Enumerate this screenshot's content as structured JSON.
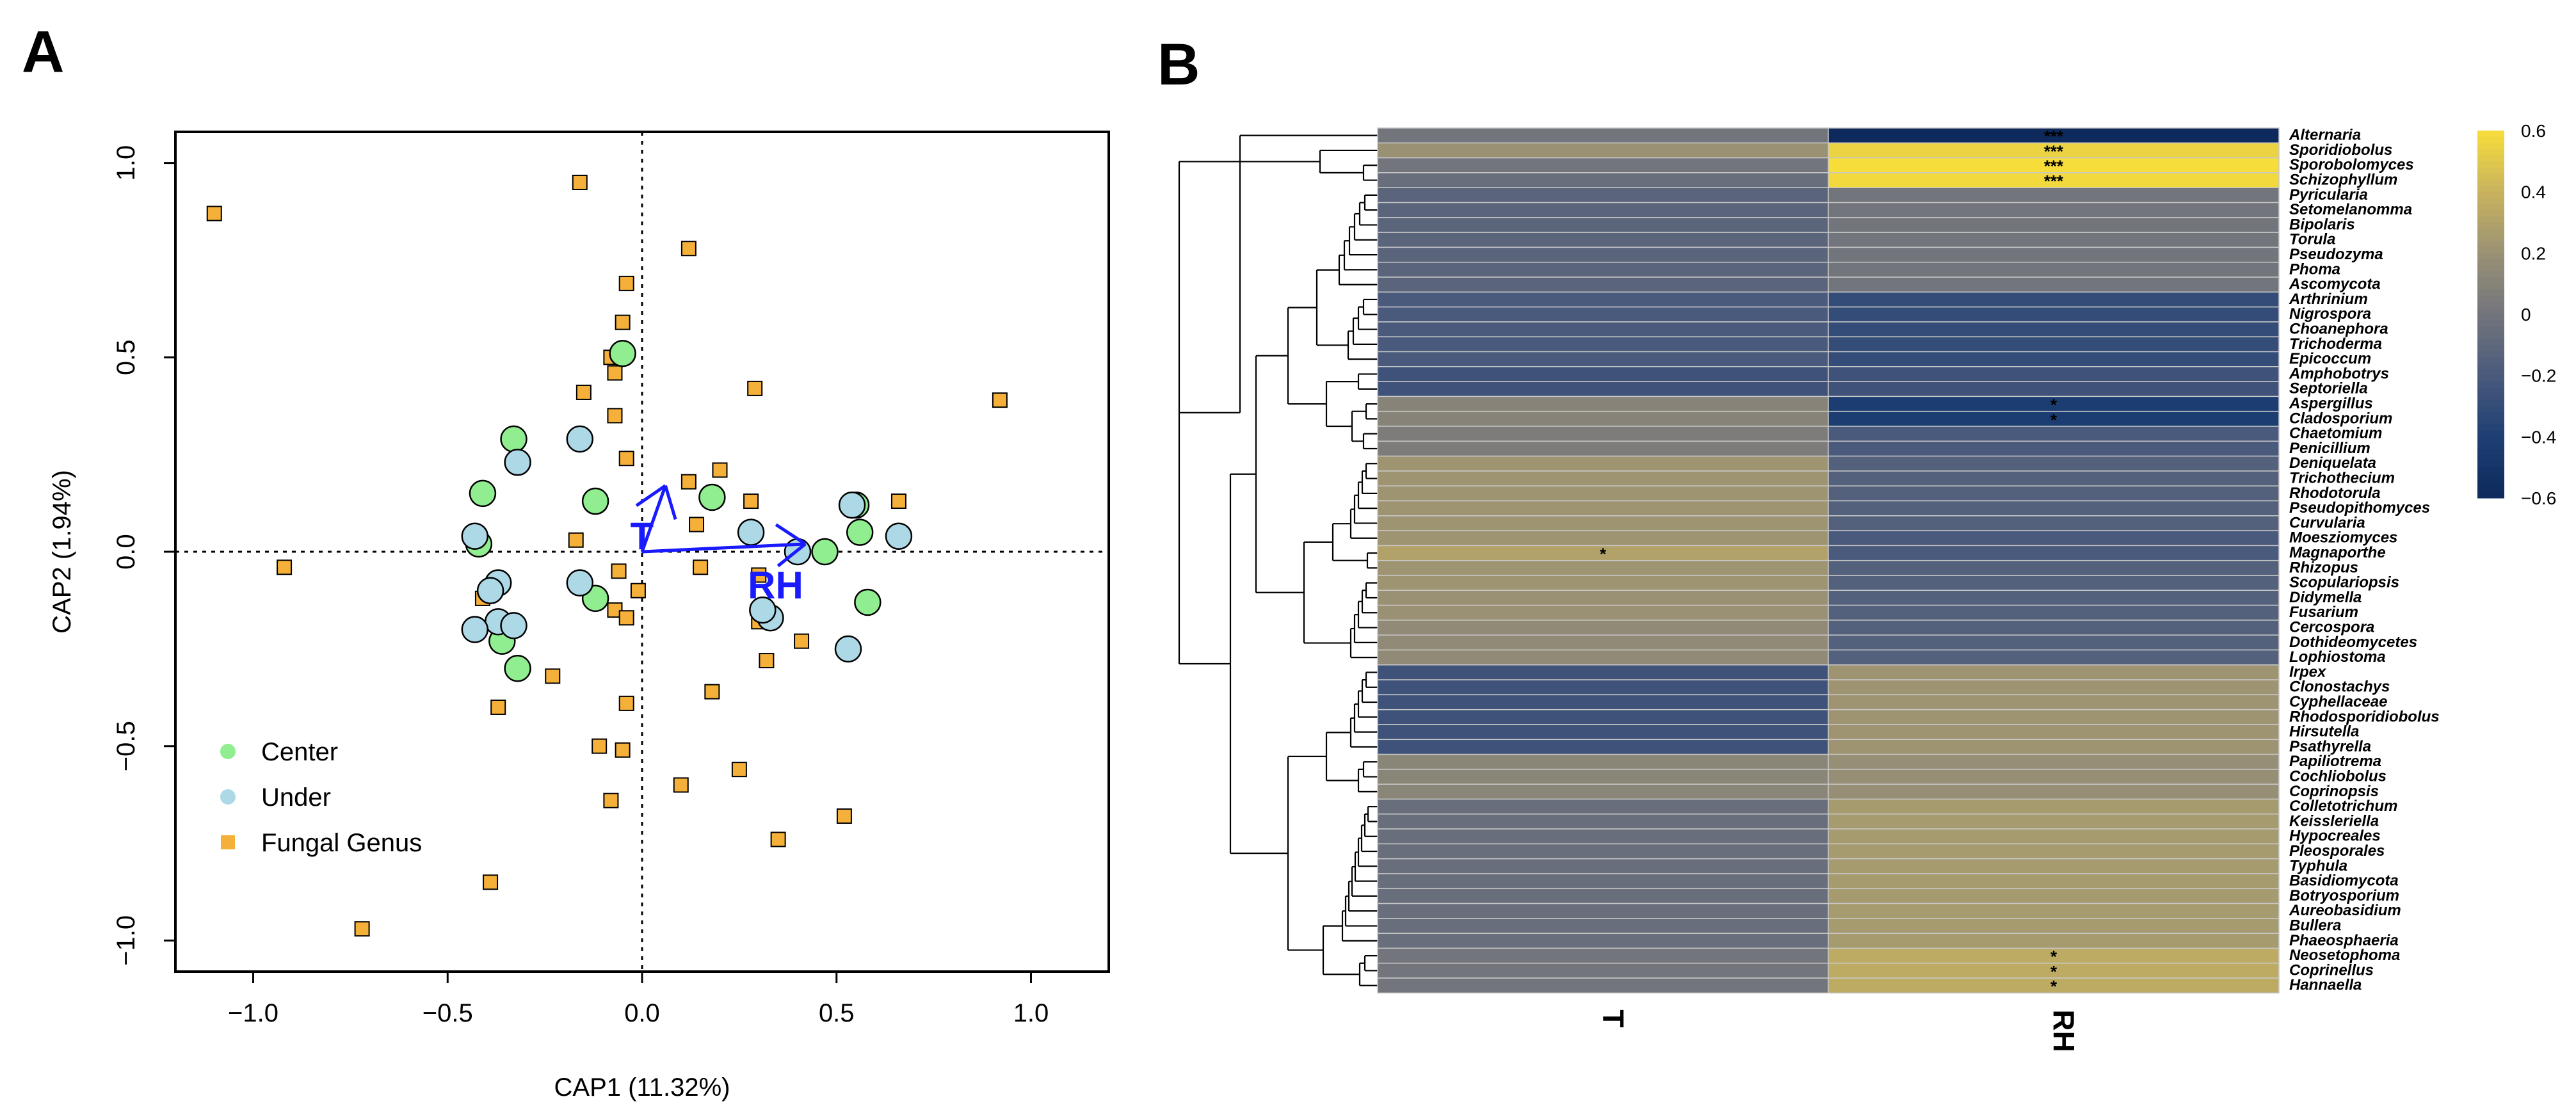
{
  "panel_a": {
    "label": "A",
    "legend": {
      "center": {
        "label": "Center",
        "color": "#90ee90"
      },
      "under": {
        "label": "Under",
        "color": "#add8e6"
      },
      "genus": {
        "label": "Fungal Genus",
        "color": "#f5b03a"
      }
    }
  },
  "panel_b": {
    "label": "B"
  },
  "chart_data": [
    {
      "type": "scatter",
      "title": "",
      "xlabel": "CAP1 (11.32%)",
      "ylabel": "CAP2 (1.94%)",
      "xlim": [
        -1.2,
        1.2
      ],
      "ylim": [
        -1.08,
        1.08
      ],
      "xticks": [
        "−1.0",
        "−0.5",
        "0.0",
        "0.5",
        "1.0"
      ],
      "xtick_values": [
        -1.0,
        -0.5,
        0.0,
        0.5,
        1.0
      ],
      "yticks": [
        "−1.0",
        "−0.5",
        "0.0",
        "0.5",
        "1.0"
      ],
      "ytick_values": [
        -1.0,
        -0.5,
        0.0,
        0.5,
        1.0
      ],
      "legend_position": "bottom-left",
      "series": [
        {
          "name": "Center",
          "points": [
            [
              -0.05,
              0.51
            ],
            [
              -0.33,
              0.29
            ],
            [
              -0.41,
              0.15
            ],
            [
              -0.12,
              0.13
            ],
            [
              0.18,
              0.14
            ],
            [
              -0.42,
              0.02
            ],
            [
              0.55,
              0.12
            ],
            [
              0.56,
              0.05
            ],
            [
              0.47,
              0.0
            ],
            [
              0.58,
              -0.13
            ],
            [
              -0.12,
              -0.12
            ],
            [
              -0.36,
              -0.23
            ],
            [
              -0.32,
              -0.3
            ]
          ]
        },
        {
          "name": "Under",
          "points": [
            [
              -0.16,
              0.29
            ],
            [
              -0.32,
              0.23
            ],
            [
              -0.43,
              0.04
            ],
            [
              0.28,
              0.05
            ],
            [
              0.54,
              0.12
            ],
            [
              0.66,
              0.04
            ],
            [
              0.4,
              0.0
            ],
            [
              -0.37,
              -0.08
            ],
            [
              -0.39,
              -0.1
            ],
            [
              -0.16,
              -0.08
            ],
            [
              0.33,
              -0.17
            ],
            [
              0.31,
              -0.15
            ],
            [
              -0.37,
              -0.18
            ],
            [
              -0.33,
              -0.19
            ],
            [
              -0.43,
              -0.2
            ],
            [
              0.53,
              -0.25
            ]
          ]
        },
        {
          "name": "Fungal Genus",
          "points": [
            [
              -1.1,
              0.87
            ],
            [
              -0.16,
              0.95
            ],
            [
              0.12,
              0.78
            ],
            [
              -0.04,
              0.69
            ],
            [
              -0.05,
              0.59
            ],
            [
              -0.08,
              0.5
            ],
            [
              -0.07,
              0.46
            ],
            [
              -0.15,
              0.41
            ],
            [
              0.29,
              0.42
            ],
            [
              0.92,
              0.39
            ],
            [
              -0.07,
              0.35
            ],
            [
              -0.04,
              0.24
            ],
            [
              0.2,
              0.21
            ],
            [
              0.12,
              0.18
            ],
            [
              0.28,
              0.13
            ],
            [
              0.66,
              0.13
            ],
            [
              0.14,
              0.07
            ],
            [
              -0.17,
              0.03
            ],
            [
              -0.92,
              -0.04
            ],
            [
              -0.06,
              -0.05
            ],
            [
              0.15,
              -0.04
            ],
            [
              0.3,
              -0.06
            ],
            [
              -0.01,
              -0.1
            ],
            [
              -0.41,
              -0.12
            ],
            [
              -0.07,
              -0.15
            ],
            [
              -0.04,
              -0.17
            ],
            [
              0.3,
              -0.18
            ],
            [
              0.41,
              -0.23
            ],
            [
              -0.23,
              -0.32
            ],
            [
              0.32,
              -0.28
            ],
            [
              0.18,
              -0.36
            ],
            [
              -0.37,
              -0.4
            ],
            [
              -0.04,
              -0.39
            ],
            [
              -0.11,
              -0.5
            ],
            [
              -0.05,
              -0.51
            ],
            [
              0.25,
              -0.56
            ],
            [
              0.1,
              -0.6
            ],
            [
              -0.08,
              -0.64
            ],
            [
              0.52,
              -0.68
            ],
            [
              0.35,
              -0.74
            ],
            [
              -0.39,
              -0.85
            ],
            [
              -0.72,
              -0.97
            ]
          ]
        }
      ],
      "vectors": [
        {
          "name": "T",
          "x": 0.06,
          "y": 0.17
        },
        {
          "name": "RH",
          "x": 0.42,
          "y": 0.02
        }
      ]
    },
    {
      "type": "heatmap",
      "columns": [
        "T",
        "RH"
      ],
      "colorbar": {
        "min": -0.6,
        "max": 0.6,
        "ticks": [
          "0.6",
          "0.4",
          "0.2",
          "0",
          "−0.2",
          "−0.4",
          "−0.6"
        ],
        "tick_values": [
          0.6,
          0.4,
          0.2,
          0,
          -0.2,
          -0.4,
          -0.6
        ]
      },
      "colormap": [
        "#0e2a5c",
        "#1e3f73",
        "#4a5a7c",
        "#73757c",
        "#9a9174",
        "#c9b35e",
        "#f7dd3a"
      ],
      "rows": [
        {
          "genus": "Alternaria",
          "T": 0.0,
          "RH": -0.65,
          "sig_T": "",
          "sig_RH": "***"
        },
        {
          "genus": "Sporidiobolus",
          "T": 0.2,
          "RH": 0.55,
          "sig_T": "",
          "sig_RH": "***"
        },
        {
          "genus": "Sporobolomyces",
          "T": 0.0,
          "RH": 0.6,
          "sig_T": "",
          "sig_RH": "***"
        },
        {
          "genus": "Schizophyllum",
          "T": -0.05,
          "RH": 0.58,
          "sig_T": "",
          "sig_RH": "***"
        },
        {
          "genus": "Pyricularia",
          "T": -0.12,
          "RH": 0.0,
          "sig_T": "",
          "sig_RH": ""
        },
        {
          "genus": "Setomelanomma",
          "T": -0.12,
          "RH": 0.0,
          "sig_T": "",
          "sig_RH": ""
        },
        {
          "genus": "Bipolaris",
          "T": -0.12,
          "RH": 0.0,
          "sig_T": "",
          "sig_RH": ""
        },
        {
          "genus": "Torula",
          "T": -0.12,
          "RH": 0.0,
          "sig_T": "",
          "sig_RH": ""
        },
        {
          "genus": "Pseudozyma",
          "T": -0.12,
          "RH": 0.0,
          "sig_T": "",
          "sig_RH": ""
        },
        {
          "genus": "Phoma",
          "T": -0.12,
          "RH": 0.0,
          "sig_T": "",
          "sig_RH": ""
        },
        {
          "genus": "Ascomycota",
          "T": -0.12,
          "RH": 0.0,
          "sig_T": "",
          "sig_RH": ""
        },
        {
          "genus": "Arthrinium",
          "T": -0.2,
          "RH": -0.3,
          "sig_T": "",
          "sig_RH": ""
        },
        {
          "genus": "Nigrospora",
          "T": -0.2,
          "RH": -0.3,
          "sig_T": "",
          "sig_RH": ""
        },
        {
          "genus": "Choanephora",
          "T": -0.2,
          "RH": -0.3,
          "sig_T": "",
          "sig_RH": ""
        },
        {
          "genus": "Trichoderma",
          "T": -0.2,
          "RH": -0.3,
          "sig_T": "",
          "sig_RH": ""
        },
        {
          "genus": "Epicoccum",
          "T": -0.2,
          "RH": -0.3,
          "sig_T": "",
          "sig_RH": ""
        },
        {
          "genus": "Amphobotrys",
          "T": -0.25,
          "RH": -0.25,
          "sig_T": "",
          "sig_RH": ""
        },
        {
          "genus": "Septoriella",
          "T": -0.25,
          "RH": -0.25,
          "sig_T": "",
          "sig_RH": ""
        },
        {
          "genus": "Aspergillus",
          "T": 0.1,
          "RH": -0.42,
          "sig_T": "",
          "sig_RH": "*"
        },
        {
          "genus": "Cladosporium",
          "T": 0.1,
          "RH": -0.42,
          "sig_T": "",
          "sig_RH": "*"
        },
        {
          "genus": "Chaetomium",
          "T": 0.05,
          "RH": -0.2,
          "sig_T": "",
          "sig_RH": ""
        },
        {
          "genus": "Penicillium",
          "T": 0.05,
          "RH": -0.2,
          "sig_T": "",
          "sig_RH": ""
        },
        {
          "genus": "Deniquelata",
          "T": 0.22,
          "RH": -0.15,
          "sig_T": "",
          "sig_RH": ""
        },
        {
          "genus": "Trichothecium",
          "T": 0.22,
          "RH": -0.15,
          "sig_T": "",
          "sig_RH": ""
        },
        {
          "genus": "Rhodotorula",
          "T": 0.22,
          "RH": -0.15,
          "sig_T": "",
          "sig_RH": ""
        },
        {
          "genus": "Pseudopithomyces",
          "T": 0.22,
          "RH": -0.15,
          "sig_T": "",
          "sig_RH": ""
        },
        {
          "genus": "Curvularia",
          "T": 0.22,
          "RH": -0.15,
          "sig_T": "",
          "sig_RH": ""
        },
        {
          "genus": "Moesziomyces",
          "T": 0.22,
          "RH": -0.2,
          "sig_T": "",
          "sig_RH": ""
        },
        {
          "genus": "Magnaporthe",
          "T": 0.3,
          "RH": -0.2,
          "sig_T": "*",
          "sig_RH": ""
        },
        {
          "genus": "Rhizopus",
          "T": 0.22,
          "RH": -0.15,
          "sig_T": "",
          "sig_RH": ""
        },
        {
          "genus": "Scopulariopsis",
          "T": 0.22,
          "RH": -0.15,
          "sig_T": "",
          "sig_RH": ""
        },
        {
          "genus": "Didymella",
          "T": 0.2,
          "RH": -0.15,
          "sig_T": "",
          "sig_RH": ""
        },
        {
          "genus": "Fusarium",
          "T": 0.2,
          "RH": -0.15,
          "sig_T": "",
          "sig_RH": ""
        },
        {
          "genus": "Cercospora",
          "T": 0.15,
          "RH": -0.15,
          "sig_T": "",
          "sig_RH": ""
        },
        {
          "genus": "Dothideomycetes",
          "T": 0.15,
          "RH": -0.15,
          "sig_T": "",
          "sig_RH": ""
        },
        {
          "genus": "Lophiostoma",
          "T": 0.15,
          "RH": -0.15,
          "sig_T": "",
          "sig_RH": ""
        },
        {
          "genus": "Irpex",
          "T": -0.25,
          "RH": 0.22,
          "sig_T": "",
          "sig_RH": ""
        },
        {
          "genus": "Clonostachys",
          "T": -0.25,
          "RH": 0.22,
          "sig_T": "",
          "sig_RH": ""
        },
        {
          "genus": "Cyphellaceae",
          "T": -0.25,
          "RH": 0.22,
          "sig_T": "",
          "sig_RH": ""
        },
        {
          "genus": "Rhodosporidiobolus",
          "T": -0.25,
          "RH": 0.22,
          "sig_T": "",
          "sig_RH": ""
        },
        {
          "genus": "Hirsutella",
          "T": -0.25,
          "RH": 0.22,
          "sig_T": "",
          "sig_RH": ""
        },
        {
          "genus": "Psathyrella",
          "T": -0.25,
          "RH": 0.22,
          "sig_T": "",
          "sig_RH": ""
        },
        {
          "genus": "Papiliotrema",
          "T": 0.12,
          "RH": 0.18,
          "sig_T": "",
          "sig_RH": ""
        },
        {
          "genus": "Cochliobolus",
          "T": 0.12,
          "RH": 0.18,
          "sig_T": "",
          "sig_RH": ""
        },
        {
          "genus": "Coprinopsis",
          "T": 0.12,
          "RH": 0.18,
          "sig_T": "",
          "sig_RH": ""
        },
        {
          "genus": "Colletotrichum",
          "T": -0.05,
          "RH": 0.25,
          "sig_T": "",
          "sig_RH": ""
        },
        {
          "genus": "Keissleriella",
          "T": -0.05,
          "RH": 0.25,
          "sig_T": "",
          "sig_RH": ""
        },
        {
          "genus": "Hypocreales",
          "T": -0.05,
          "RH": 0.25,
          "sig_T": "",
          "sig_RH": ""
        },
        {
          "genus": "Pleosporales",
          "T": -0.05,
          "RH": 0.25,
          "sig_T": "",
          "sig_RH": ""
        },
        {
          "genus": "Typhula",
          "T": -0.05,
          "RH": 0.25,
          "sig_T": "",
          "sig_RH": ""
        },
        {
          "genus": "Basidiomycota",
          "T": -0.05,
          "RH": 0.25,
          "sig_T": "",
          "sig_RH": ""
        },
        {
          "genus": "Botryosporium",
          "T": -0.05,
          "RH": 0.25,
          "sig_T": "",
          "sig_RH": ""
        },
        {
          "genus": "Aureobasidium",
          "T": -0.05,
          "RH": 0.25,
          "sig_T": "",
          "sig_RH": ""
        },
        {
          "genus": "Bullera",
          "T": -0.05,
          "RH": 0.25,
          "sig_T": "",
          "sig_RH": ""
        },
        {
          "genus": "Phaeosphaeria",
          "T": -0.05,
          "RH": 0.25,
          "sig_T": "",
          "sig_RH": ""
        },
        {
          "genus": "Neosetophoma",
          "T": 0.0,
          "RH": 0.35,
          "sig_T": "",
          "sig_RH": "*"
        },
        {
          "genus": "Coprinellus",
          "T": 0.0,
          "RH": 0.35,
          "sig_T": "",
          "sig_RH": "*"
        },
        {
          "genus": "Hannaella",
          "T": 0.0,
          "RH": 0.35,
          "sig_T": "",
          "sig_RH": "*"
        }
      ]
    }
  ]
}
